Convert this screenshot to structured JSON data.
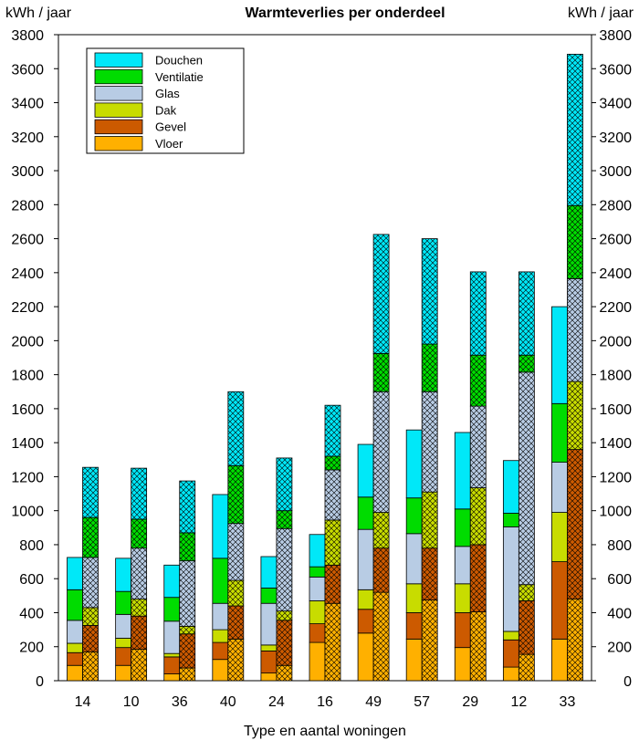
{
  "chart_data": {
    "type": "bar",
    "title": "Warmteverlies per onderdeel",
    "ylabel_left": "kWh / jaar",
    "ylabel_right": "kWh / jaar",
    "xlabel": "Type en aantal woningen",
    "ylim": [
      0,
      3800
    ],
    "ytick_step": 200,
    "grid": false,
    "legend_position": "top-left",
    "categories": [
      "14",
      "10",
      "36",
      "40",
      "24",
      "16",
      "49",
      "57",
      "29",
      "12",
      "33"
    ],
    "legend_order": [
      "Douchen",
      "Ventilatie",
      "Glas",
      "Dak",
      "Gevel",
      "Vloer"
    ],
    "colors": {
      "Vloer": "#FFB000",
      "Gevel": "#CC5A00",
      "Dak": "#C8DC00",
      "Glas": "#B8CCE4",
      "Ventilatie": "#00DC00",
      "Douchen": "#00E8F8"
    },
    "hatch_note": "Each category has two adjacent stacked bars: a plain bar (left) and a cross-hatched bar (right).",
    "series_groups": [
      {
        "name": "plain",
        "pattern": "solid",
        "series": [
          {
            "name": "Vloer",
            "values": [
              90,
              90,
              40,
              125,
              45,
              225,
              280,
              245,
              195,
              80,
              245
            ]
          },
          {
            "name": "Gevel",
            "values": [
              75,
              105,
              100,
              100,
              130,
              110,
              140,
              155,
              205,
              160,
              455
            ]
          },
          {
            "name": "Dak",
            "values": [
              55,
              55,
              20,
              75,
              35,
              135,
              115,
              170,
              170,
              50,
              290
            ]
          },
          {
            "name": "Glas",
            "values": [
              135,
              140,
              190,
              155,
              245,
              140,
              355,
              295,
              220,
              615,
              295
            ]
          },
          {
            "name": "Ventilatie",
            "values": [
              180,
              135,
              140,
              265,
              90,
              60,
              190,
              210,
              220,
              80,
              345
            ]
          },
          {
            "name": "Douchen",
            "values": [
              190,
              195,
              190,
              375,
              185,
              190,
              310,
              400,
              450,
              310,
              570
            ]
          }
        ]
      },
      {
        "name": "hatched",
        "pattern": "crosshatch",
        "series": [
          {
            "name": "Vloer",
            "values": [
              170,
              185,
              75,
              245,
              90,
              455,
              520,
              475,
              405,
              155,
              480
            ]
          },
          {
            "name": "Gevel",
            "values": [
              155,
              195,
              200,
              195,
              265,
              225,
              260,
              305,
              395,
              315,
              880
            ]
          },
          {
            "name": "Dak",
            "values": [
              105,
              100,
              45,
              150,
              55,
              265,
              210,
              330,
              335,
              95,
              400
            ]
          },
          {
            "name": "Glas",
            "values": [
              295,
              300,
              385,
              335,
              485,
              295,
              710,
              590,
              480,
              1250,
              605
            ]
          },
          {
            "name": "Ventilatie",
            "values": [
              235,
              170,
              165,
              340,
              105,
              80,
              225,
              280,
              300,
              100,
              430
            ]
          },
          {
            "name": "Douchen",
            "values": [
              295,
              300,
              305,
              435,
              310,
              300,
              700,
              620,
              490,
              490,
              890
            ]
          }
        ]
      }
    ]
  }
}
